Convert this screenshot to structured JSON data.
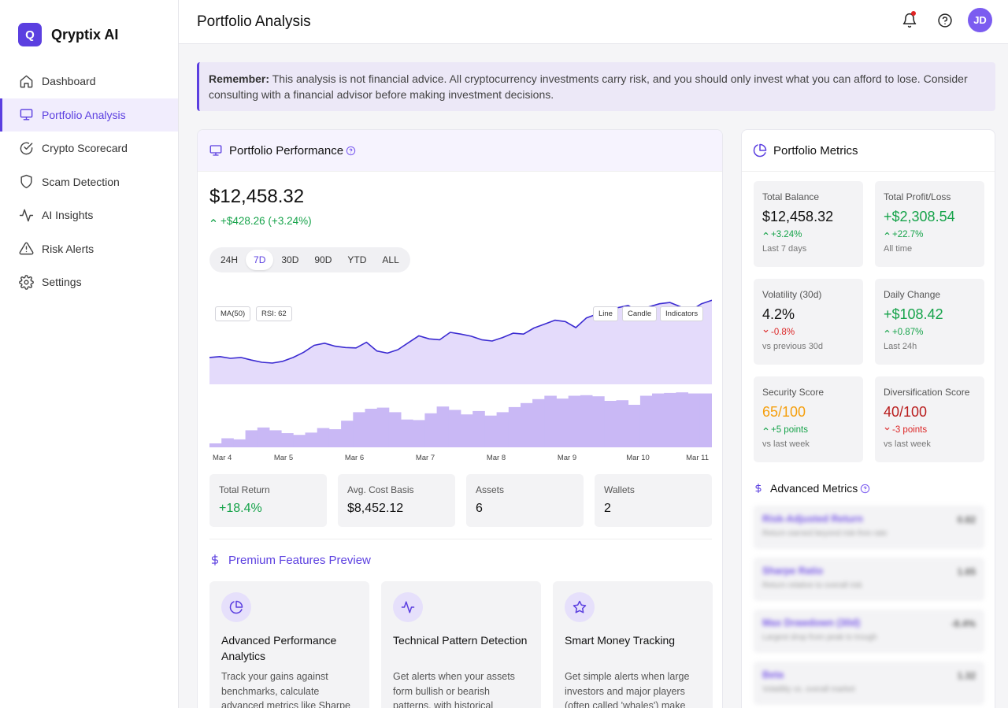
{
  "app": {
    "name": "Qryptix AI",
    "logo_letter": "Q"
  },
  "sidebar": {
    "items": [
      {
        "label": "Dashboard",
        "icon": "home-icon"
      },
      {
        "label": "Portfolio Analysis",
        "icon": "monitor-icon",
        "active": true
      },
      {
        "label": "Crypto Scorecard",
        "icon": "check-circle-icon"
      },
      {
        "label": "Scam Detection",
        "icon": "shield-icon"
      },
      {
        "label": "AI Insights",
        "icon": "activity-icon"
      },
      {
        "label": "Risk Alerts",
        "icon": "alert-triangle-icon"
      },
      {
        "label": "Settings",
        "icon": "gear-icon"
      }
    ]
  },
  "header": {
    "title": "Portfolio Analysis",
    "avatar_initials": "JD"
  },
  "disclaimer": {
    "lead": "Remember:",
    "text": " This analysis is not financial advice. All cryptocurrency investments carry risk, and you should only invest what you can afford to lose. Consider consulting with a financial advisor before making investment decisions."
  },
  "performance": {
    "title": "Portfolio Performance",
    "balance": "$12,458.32",
    "change": "+$428.26 (+3.24%)",
    "ranges": [
      "24H",
      "7D",
      "30D",
      "90D",
      "YTD",
      "ALL"
    ],
    "active_range": "7D",
    "chips": {
      "ma": "MA(50)",
      "rsi": "RSI: 62",
      "line": "Line",
      "candle": "Candle",
      "indicators": "Indicators"
    },
    "stats": [
      {
        "label": "Total Return",
        "value": "+18.4%",
        "positive": true
      },
      {
        "label": "Avg. Cost Basis",
        "value": "$8,452.12"
      },
      {
        "label": "Assets",
        "value": "6"
      },
      {
        "label": "Wallets",
        "value": "2"
      }
    ]
  },
  "chart_data": {
    "type": "area",
    "x_ticks": [
      "Mar 4",
      "Mar 5",
      "Mar 6",
      "Mar 7",
      "Mar 8",
      "Mar 9",
      "Mar 10",
      "Mar 11"
    ],
    "price": [
      0.62,
      0.64,
      0.6,
      0.62,
      0.56,
      0.51,
      0.49,
      0.53,
      0.62,
      0.74,
      0.9,
      0.95,
      0.88,
      0.85,
      0.84,
      0.97,
      0.77,
      0.72,
      0.8,
      0.96,
      1.12,
      1.05,
      1.03,
      1.2,
      1.16,
      1.11,
      1.03,
      1.0,
      1.08,
      1.18,
      1.16,
      1.3,
      1.39,
      1.48,
      1.45,
      1.31,
      1.53,
      1.62,
      1.7,
      1.77,
      1.82,
      1.67,
      1.79,
      1.86,
      1.89,
      1.79,
      1.71,
      1.86,
      1.94
    ],
    "volume": [
      0.07,
      0.16,
      0.14,
      0.3,
      0.35,
      0.3,
      0.25,
      0.22,
      0.26,
      0.34,
      0.32,
      0.47,
      0.62,
      0.68,
      0.7,
      0.62,
      0.49,
      0.48,
      0.6,
      0.72,
      0.66,
      0.58,
      0.64,
      0.56,
      0.62,
      0.71,
      0.78,
      0.85,
      0.91,
      0.86,
      0.91,
      0.92,
      0.9,
      0.82,
      0.83,
      0.75,
      0.91,
      0.95,
      0.96,
      0.97,
      0.95,
      0.95
    ],
    "price_range": [
      0,
      2
    ],
    "volume_range": [
      0,
      1
    ]
  },
  "premium": {
    "title": "Premium Features Preview",
    "features": [
      {
        "title": "Advanced Performance Analytics",
        "desc": "Track your gains against benchmarks, calculate advanced metrics like Sharpe",
        "icon": "pie-chart-icon"
      },
      {
        "title": "Technical Pattern Detection",
        "desc": "Get alerts when your assets form bullish or bearish patterns, with historical",
        "icon": "activity-icon"
      },
      {
        "title": "Smart Money Tracking",
        "desc": "Get simple alerts when large investors and major players (often called 'whales') make significant purchases or sales",
        "icon": "star-icon"
      }
    ]
  },
  "metrics": {
    "title": "Portfolio Metrics",
    "items": [
      {
        "label": "Total Balance",
        "value": "$12,458.32",
        "value_color": "default",
        "delta": "+3.24%",
        "delta_dir": "up",
        "sub": "Last 7 days"
      },
      {
        "label": "Total Profit/Loss",
        "value": "+$2,308.54",
        "value_color": "green",
        "delta": "+22.7%",
        "delta_dir": "up",
        "sub": "All time"
      },
      {
        "label": "Volatility (30d)",
        "value": "4.2%",
        "value_color": "default",
        "delta": "-0.8%",
        "delta_dir": "down",
        "sub": "vs previous 30d"
      },
      {
        "label": "Daily Change",
        "value": "+$108.42",
        "value_color": "green",
        "delta": "+0.87%",
        "delta_dir": "up",
        "sub": "Last 24h"
      },
      {
        "label": "Security Score",
        "value": "65/100",
        "value_color": "orange",
        "delta": "+5 points",
        "delta_dir": "up",
        "sub": "vs last week"
      },
      {
        "label": "Diversification Score",
        "value": "40/100",
        "value_color": "darkred",
        "delta": "-3 points",
        "delta_dir": "down",
        "sub": "vs last week"
      }
    ],
    "advanced_title": "Advanced Metrics",
    "advanced": [
      {
        "name": "Risk-Adjusted Return",
        "desc": "Return earned beyond risk-free rate",
        "value": "0.82"
      },
      {
        "name": "Sharpe Ratio",
        "desc": "Return relative to overall risk",
        "value": "1.65"
      },
      {
        "name": "Max Drawdown (30d)",
        "desc": "Largest drop from peak to trough",
        "value": "-8.4%"
      },
      {
        "name": "Beta",
        "desc": "Volatility vs. overall market",
        "value": "1.32"
      }
    ]
  },
  "colors": {
    "accent": "#5b3fe0",
    "positive": "#16a34a",
    "negative": "#dc2626",
    "warning": "#f59e0b"
  }
}
